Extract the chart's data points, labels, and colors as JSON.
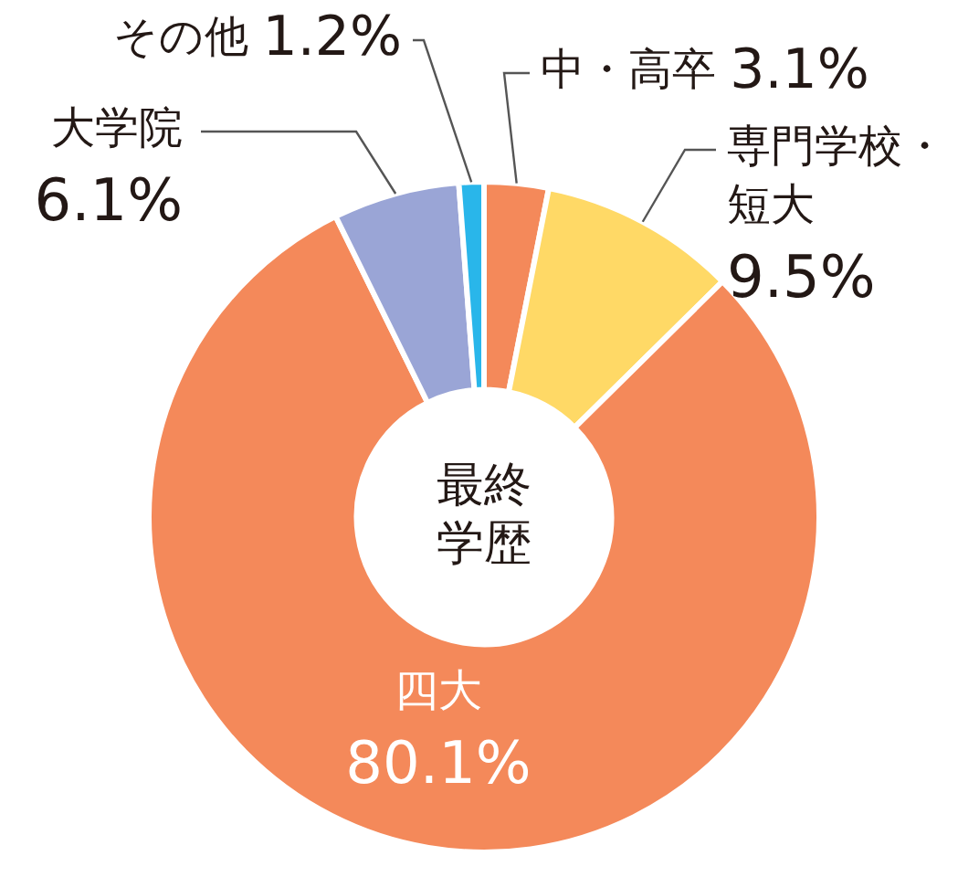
{
  "chart_data": {
    "type": "donut",
    "title": "最終学歴",
    "categories": [
      "中・高卒",
      "専門学校・短大",
      "四大",
      "大学院",
      "その他"
    ],
    "values": [
      3.1,
      9.5,
      80.1,
      6.1,
      1.2
    ],
    "value_labels": [
      "3.1%",
      "9.5%",
      "80.1%",
      "6.1%",
      "1.2%"
    ],
    "colors": [
      "#f4895a",
      "#ffd966",
      "#f4895a",
      "#9aa5d6",
      "#29b6ea"
    ],
    "legend": false
  }
}
